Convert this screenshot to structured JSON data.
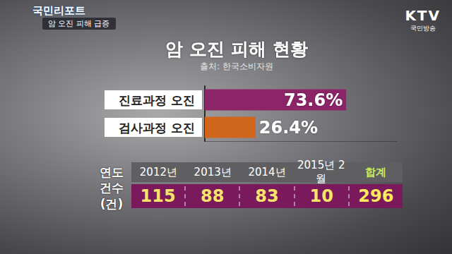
{
  "header": {
    "logo": "국민리포트",
    "headline": "암 오진 피해 급증",
    "channel": "KTV",
    "channel_sub": "국민방송"
  },
  "chart_data": {
    "type": "bar",
    "orientation": "horizontal",
    "title": "암 오진 피해 현황",
    "subtitle": "출처: 한국소비자원",
    "categories": [
      "진료과정 오진",
      "검사과정 오진"
    ],
    "values": [
      73.6,
      26.4
    ],
    "value_labels": [
      "73.6%",
      "26.4%"
    ],
    "colors": [
      "#8c2468",
      "#d0661c"
    ],
    "xlim": [
      0,
      100
    ],
    "data_labels": true,
    "tick_labels": "y",
    "grid": false
  },
  "table": {
    "rows": [
      [
        "연도",
        "2012년",
        "2013년",
        "2014년",
        "2015년 2월",
        "합계"
      ],
      [
        "건수(건)",
        115,
        88,
        83,
        10,
        296
      ]
    ]
  }
}
